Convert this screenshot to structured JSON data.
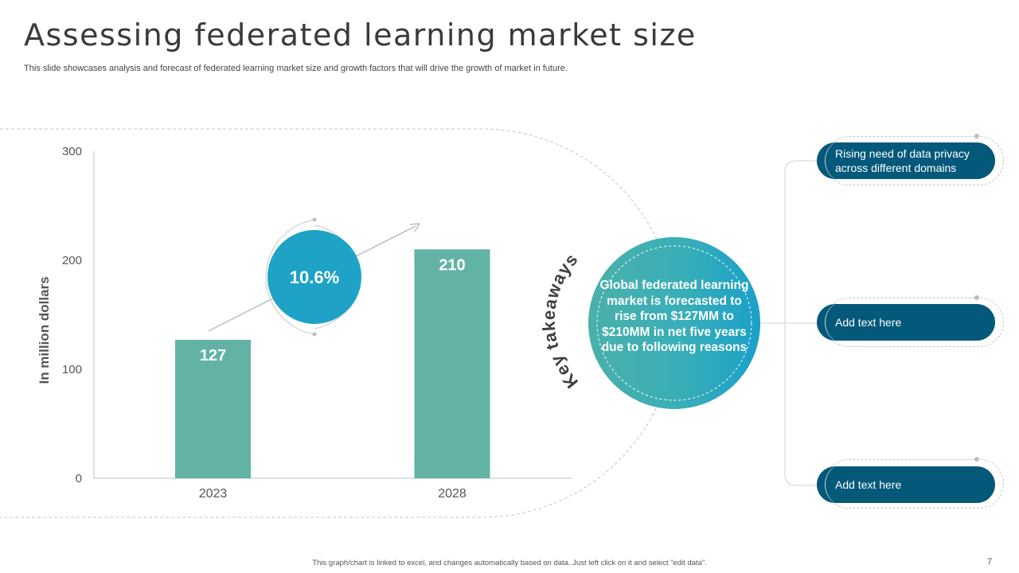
{
  "slide": {
    "title": "Assessing federated learning market size",
    "subtitle": "This slide showcases analysis and forecast of federated learning market size and growth factors that will drive the growth of market in future.",
    "footer_note": "This graph/chart is linked to excel, and changes automatically based on data. Just left click on it and select “edit data”.",
    "page_number": "7"
  },
  "chart_data": {
    "type": "bar",
    "categories": [
      "2023",
      "2028"
    ],
    "values": [
      127,
      210
    ],
    "ylabel": "In million dollars",
    "ylim": [
      0,
      300
    ],
    "yticks": [
      "0",
      "100",
      "200",
      "300"
    ],
    "bar_color": "#62b3a6",
    "growth_label": "10.6%"
  },
  "takeaways": {
    "label": "Key takeaways",
    "center_text": "Global federated learning market is forecasted to rise from $127MM to $210MM in net five years due to following reasons",
    "reasons": [
      "Rising need of data privacy across different domains",
      "Add text here",
      "Add text here"
    ]
  },
  "colors": {
    "pill": "#04597a",
    "circle_dark": "#1ea3c6",
    "circle_teal": "#4bb2ad"
  }
}
